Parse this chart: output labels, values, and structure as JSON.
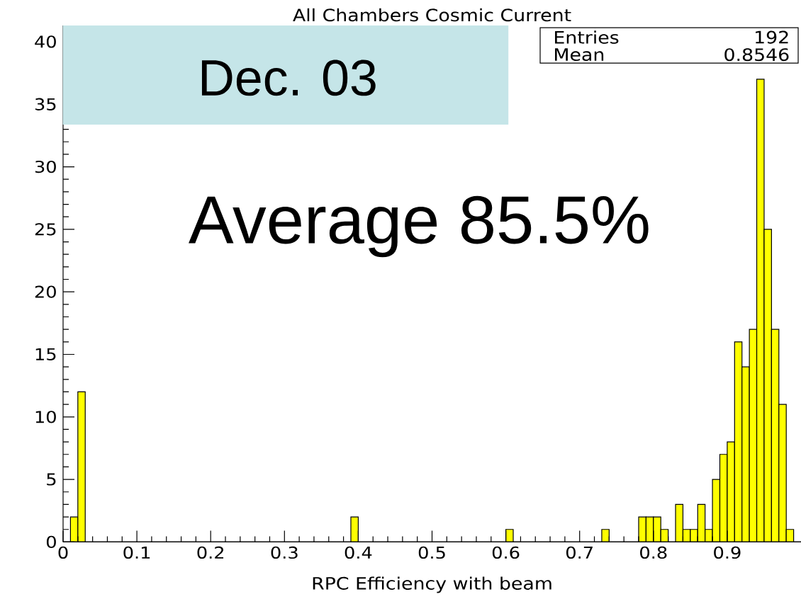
{
  "chart_data": {
    "type": "histogram",
    "title": "All Chambers Cosmic Current",
    "xlabel": "RPC Efficiency with beam",
    "bins": [
      0,
      0.01,
      0.02,
      0.03,
      0.04,
      0.05,
      0.06,
      0.07,
      0.08,
      0.09,
      0.1,
      0.11,
      0.12,
      0.13,
      0.14,
      0.15,
      0.16,
      0.17,
      0.18,
      0.19,
      0.2,
      0.21,
      0.22,
      0.23,
      0.24,
      0.25,
      0.26,
      0.27,
      0.28,
      0.29,
      0.3,
      0.31,
      0.32,
      0.33,
      0.34,
      0.35,
      0.36,
      0.37,
      0.38,
      0.39,
      0.4,
      0.41,
      0.42,
      0.43,
      0.44,
      0.45,
      0.46,
      0.47,
      0.48,
      0.49,
      0.5,
      0.51,
      0.52,
      0.53,
      0.54,
      0.55,
      0.56,
      0.57,
      0.58,
      0.59,
      0.6,
      0.61,
      0.62,
      0.63,
      0.64,
      0.65,
      0.66,
      0.67,
      0.68,
      0.69,
      0.7,
      0.71,
      0.72,
      0.73,
      0.74,
      0.75,
      0.76,
      0.77,
      0.78,
      0.79,
      0.8,
      0.81,
      0.82,
      0.83,
      0.84,
      0.85,
      0.86,
      0.87,
      0.88,
      0.89,
      0.9,
      0.91,
      0.92,
      0.93,
      0.94,
      0.95,
      0.96,
      0.97,
      0.98,
      0.99,
      1
    ],
    "values": [
      0,
      2,
      12,
      0,
      0,
      0,
      0,
      0,
      0,
      0,
      0,
      0,
      0,
      0,
      0,
      0,
      0,
      0,
      0,
      0,
      0,
      0,
      0,
      0,
      0,
      0,
      0,
      0,
      0,
      0,
      0,
      0,
      0,
      0,
      0,
      0,
      0,
      0,
      0,
      2,
      0,
      0,
      0,
      0,
      0,
      0,
      0,
      0,
      0,
      0,
      0,
      0,
      0,
      0,
      0,
      0,
      0,
      0,
      0,
      0,
      1,
      0,
      0,
      0,
      0,
      0,
      0,
      0,
      0,
      0,
      0,
      0,
      0,
      1,
      0,
      0,
      0,
      0,
      2,
      2,
      2,
      1,
      0,
      3,
      1,
      1,
      3,
      1,
      5,
      7,
      8,
      16,
      14,
      17,
      37,
      25,
      17,
      11,
      1,
      0
    ],
    "color": "#ffff00",
    "xlim": [
      0,
      1
    ],
    "ylim": [
      0,
      41.3
    ],
    "xticks": [
      0,
      0.1,
      0.2,
      0.3,
      0.4,
      0.5,
      0.6,
      0.7,
      0.8,
      0.9
    ],
    "yticks": [
      0,
      5,
      10,
      15,
      20,
      25,
      30,
      35,
      40
    ],
    "annotations": [
      "Dec. 03",
      "Average 85.5%",
      "Entries",
      "192",
      "Mean",
      "0.8546"
    ]
  }
}
